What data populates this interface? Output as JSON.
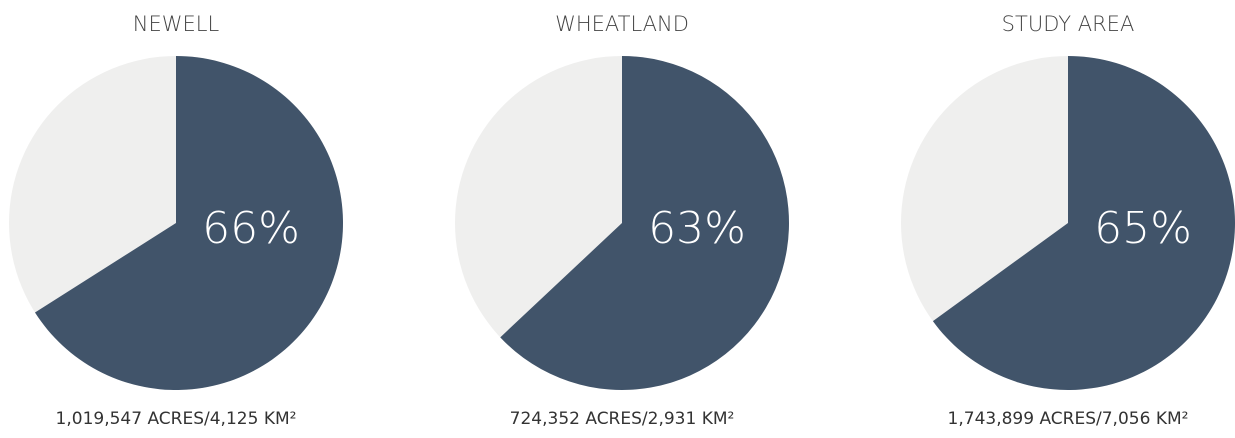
{
  "chart_data": [
    {
      "type": "pie",
      "title": "NEWELL",
      "values": [
        66
      ],
      "value_labels": [
        "66%"
      ],
      "color": "#41546a",
      "background_color": "#efefee",
      "caption": "1,019,547 ACRES/4,125 KM²"
    },
    {
      "type": "pie",
      "title": "WHEATLAND",
      "values": [
        63
      ],
      "value_labels": [
        "63%"
      ],
      "color": "#41546a",
      "background_color": "#efefee",
      "caption": "724,352 ACRES/2,931 KM²"
    },
    {
      "type": "pie",
      "title": "STUDY AREA",
      "values": [
        65
      ],
      "value_labels": [
        "65%"
      ],
      "color": "#41546a",
      "background_color": "#efefee",
      "caption": "1,743,899 ACRES/7,056 KM²"
    }
  ]
}
